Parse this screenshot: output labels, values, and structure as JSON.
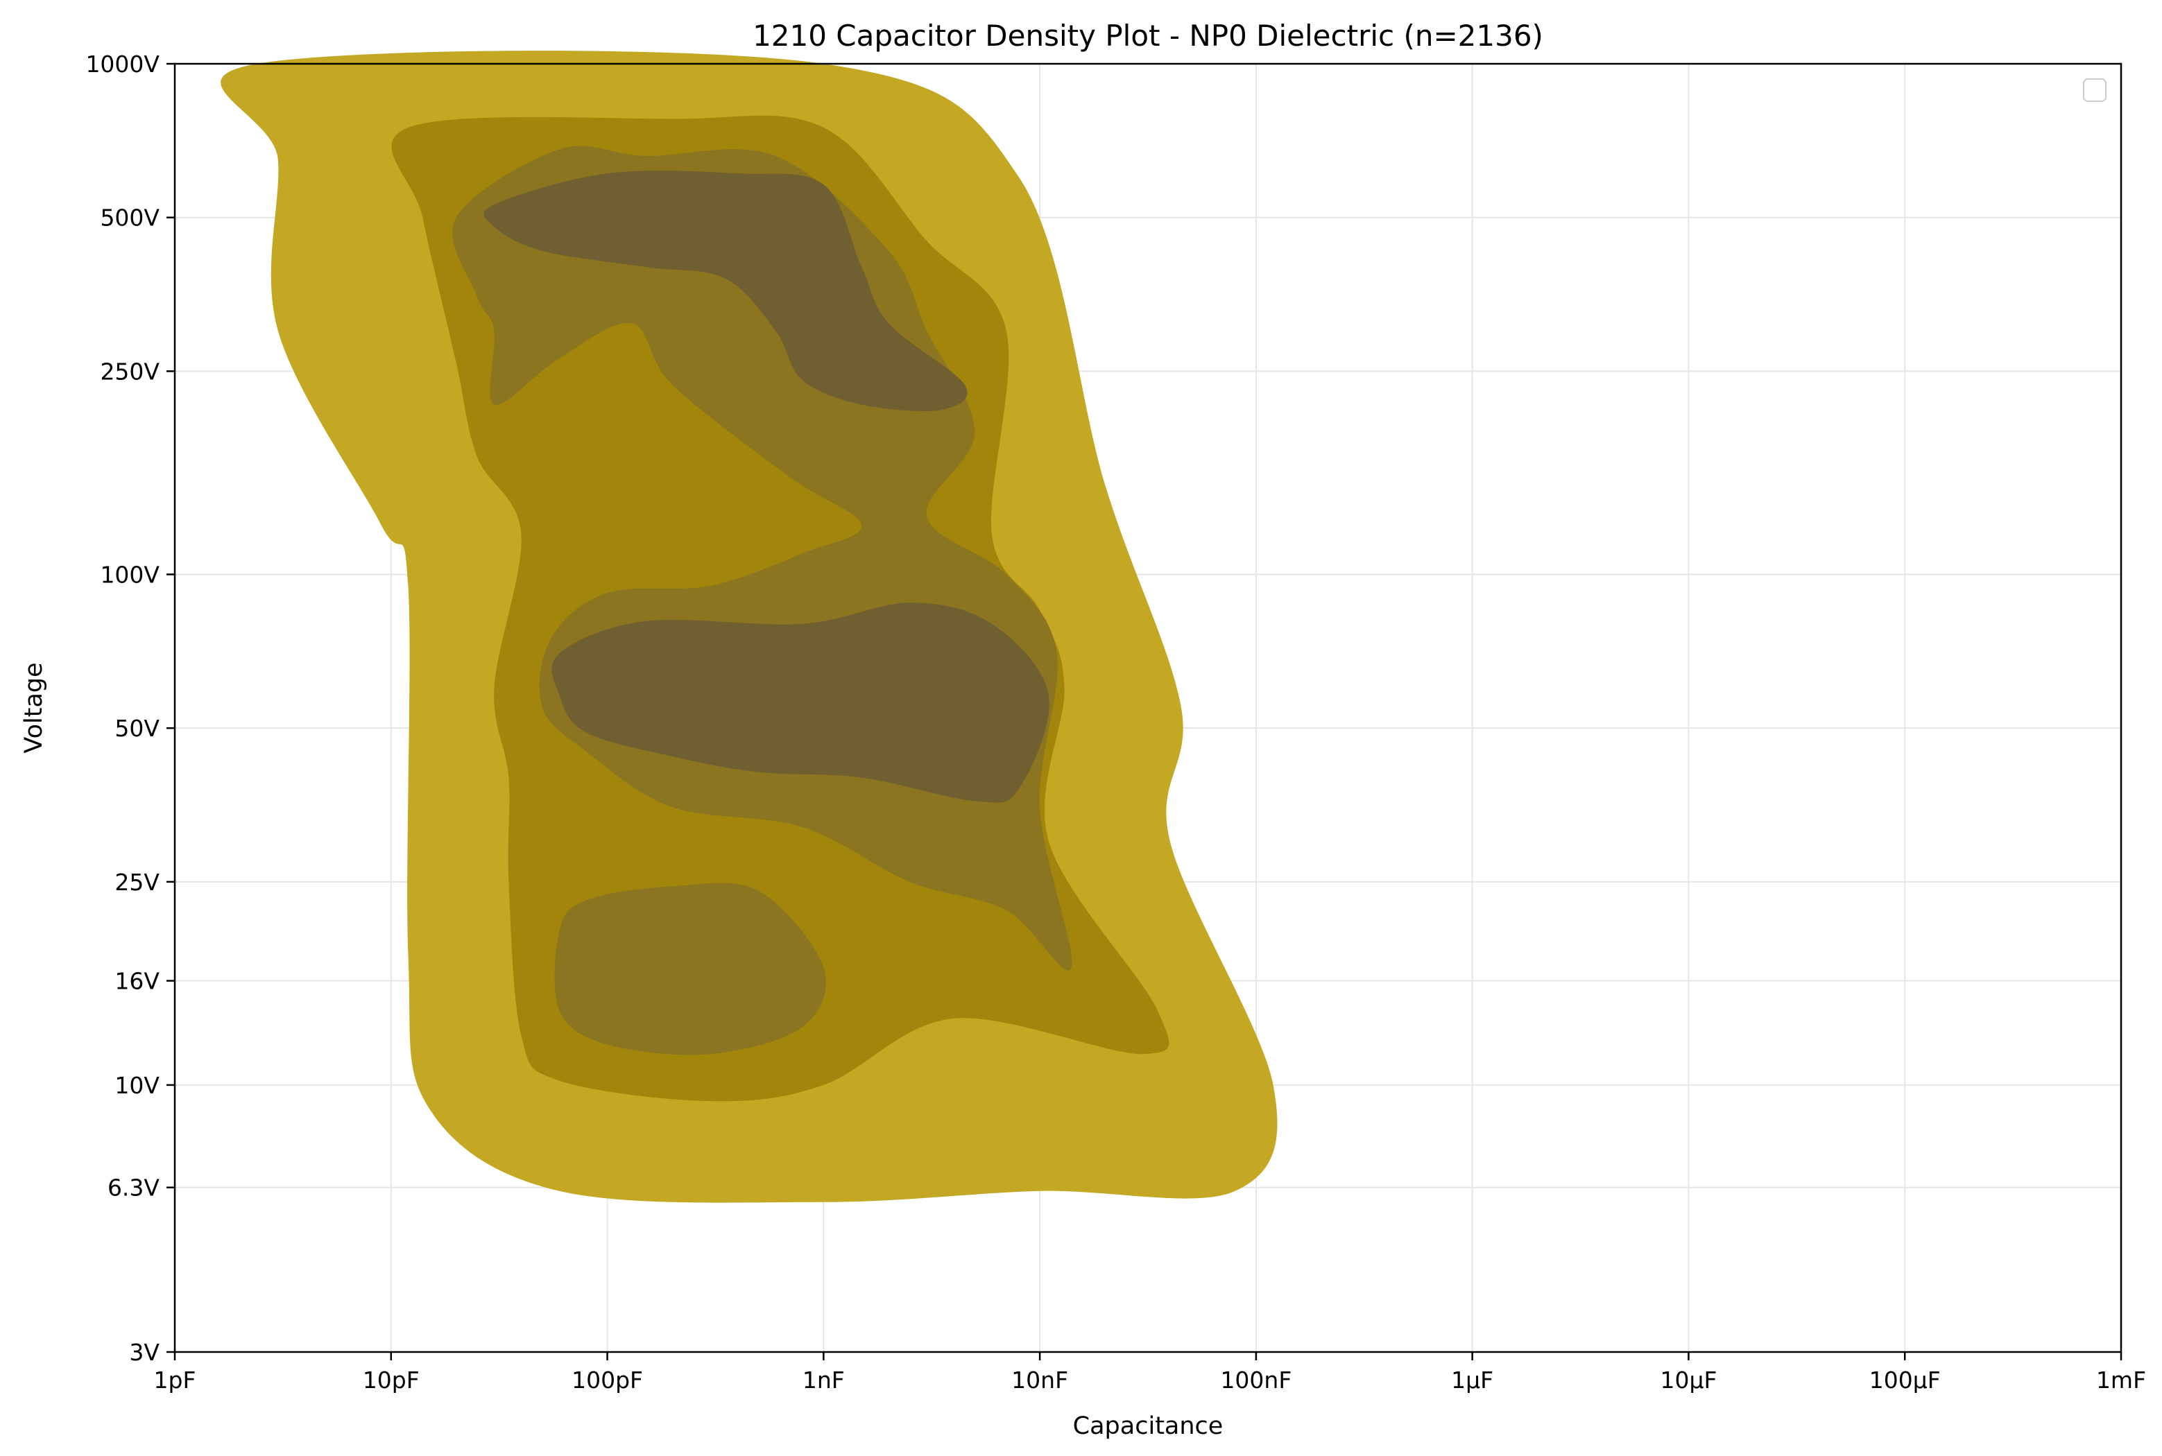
{
  "chart_data": {
    "type": "density_contour",
    "title": "1210 Capacitor Density Plot - NP0 Dielectric (n=2136)",
    "xlabel": "Capacitance",
    "ylabel": "Voltage",
    "x_scale": "log",
    "y_scale": "log",
    "xlim": [
      1e-12,
      0.001
    ],
    "ylim": [
      3,
      1000
    ],
    "grid": true,
    "legend": {
      "placement": "top-right",
      "entries": []
    },
    "x_ticks": [
      {
        "value": 1e-12,
        "label": "1pF"
      },
      {
        "value": 1e-11,
        "label": "10pF"
      },
      {
        "value": 1e-10,
        "label": "100pF"
      },
      {
        "value": 1e-09,
        "label": "1nF"
      },
      {
        "value": 1e-08,
        "label": "10nF"
      },
      {
        "value": 1e-07,
        "label": "100nF"
      },
      {
        "value": 1e-06,
        "label": "1µF"
      },
      {
        "value": 1e-05,
        "label": "10µF"
      },
      {
        "value": 0.0001,
        "label": "100µF"
      },
      {
        "value": 0.001,
        "label": "1mF"
      }
    ],
    "y_ticks": [
      {
        "value": 3,
        "label": "3V"
      },
      {
        "value": 6.3,
        "label": "6.3V"
      },
      {
        "value": 10,
        "label": "10V"
      },
      {
        "value": 16,
        "label": "16V"
      },
      {
        "value": 25,
        "label": "25V"
      },
      {
        "value": 50,
        "label": "50V"
      },
      {
        "value": 100,
        "label": "100V"
      },
      {
        "value": 250,
        "label": "250V"
      },
      {
        "value": 500,
        "label": "500V"
      },
      {
        "value": 1000,
        "label": "1000V"
      }
    ],
    "colors": {
      "level_1": "#c4a723",
      "level_2": "#a1860b",
      "level_3": "#8c7520",
      "level_4": "#6f5f31"
    },
    "density_levels": [
      {
        "level": 1,
        "color": "#c4a723",
        "regions": [
          [
            [
              2.4e-12,
              1000
            ],
            [
              1e-09,
              1000
            ],
            [
              8e-09,
              600
            ],
            [
              2e-08,
              150
            ],
            [
              4.5e-08,
              55
            ],
            [
              4e-08,
              30
            ],
            [
              1.2e-07,
              10
            ],
            [
              8e-08,
              6.2
            ],
            [
              1e-08,
              6.2
            ],
            [
              1e-09,
              5.9
            ],
            [
              6e-11,
              6.2
            ],
            [
              1.5e-11,
              9
            ],
            [
              1.2e-11,
              18
            ],
            [
              1.2e-11,
              95
            ],
            [
              9e-12,
              125
            ],
            [
              3e-12,
              300
            ],
            [
              3e-12,
              650
            ]
          ]
        ]
      },
      {
        "level": 2,
        "color": "#a1860b",
        "regions": [
          [
            [
              1.2e-11,
              750
            ],
            [
              2e-10,
              780
            ],
            [
              1e-09,
              750
            ],
            [
              3e-09,
              450
            ],
            [
              7e-09,
              300
            ],
            [
              6e-09,
              120
            ],
            [
              1e-08,
              85
            ],
            [
              1.3e-08,
              60
            ],
            [
              1.1e-08,
              30
            ],
            [
              3.5e-08,
              14
            ],
            [
              3e-08,
              11.5
            ],
            [
              4e-09,
              13.5
            ],
            [
              1e-09,
              10
            ],
            [
              3e-10,
              9.3
            ],
            [
              6e-11,
              10.2
            ],
            [
              4e-11,
              12.5
            ],
            [
              3.5e-11,
              25
            ],
            [
              3.5e-11,
              40
            ],
            [
              3e-11,
              60
            ],
            [
              4e-11,
              120
            ],
            [
              2.5e-11,
              170
            ],
            [
              2e-11,
              260
            ],
            [
              1.4e-11,
              500
            ]
          ]
        ]
      },
      {
        "level": 3,
        "color": "#8c7520",
        "regions": [
          [
            [
              2e-11,
              500
            ],
            [
              6e-11,
              680
            ],
            [
              1.5e-10,
              660
            ],
            [
              6e-10,
              660
            ],
            [
              2e-09,
              430
            ],
            [
              3e-09,
              300
            ],
            [
              5e-09,
              190
            ],
            [
              3e-09,
              130
            ],
            [
              7e-09,
              100
            ],
            [
              1.2e-08,
              70
            ],
            [
              1e-08,
              35
            ],
            [
              1.4e-08,
              17
            ],
            [
              7e-09,
              22
            ],
            [
              2.5e-09,
              25
            ],
            [
              8e-10,
              32
            ],
            [
              2e-10,
              35
            ],
            [
              8e-11,
              45
            ],
            [
              5e-11,
              55
            ],
            [
              5.5e-11,
              75
            ],
            [
              1e-10,
              92
            ],
            [
              3e-10,
              95
            ],
            [
              8e-10,
              110
            ],
            [
              1.5e-09,
              125
            ],
            [
              7e-10,
              155
            ],
            [
              2e-10,
              235
            ],
            [
              1.3e-10,
              310
            ],
            [
              6e-11,
              265
            ],
            [
              3e-11,
              215
            ],
            [
              3e-11,
              300
            ],
            [
              2.5e-11,
              350
            ]
          ],
          [
            [
              8e-11,
              23
            ],
            [
              2e-10,
              24.5
            ],
            [
              5e-10,
              24
            ],
            [
              1e-09,
              17
            ],
            [
              8e-10,
              13
            ],
            [
              3e-10,
              11.5
            ],
            [
              1e-10,
              12
            ],
            [
              6e-11,
              14
            ],
            [
              6e-11,
              20
            ]
          ]
        ]
      },
      {
        "level": 4,
        "color": "#6f5f31",
        "regions": [
          [
            [
              3e-11,
              530
            ],
            [
              1e-10,
              610
            ],
            [
              4e-10,
              610
            ],
            [
              1e-09,
              580
            ],
            [
              1.5e-09,
              400
            ],
            [
              2e-09,
              310
            ],
            [
              4.5e-09,
              235
            ],
            [
              3.5e-09,
              210
            ],
            [
              1.5e-09,
              215
            ],
            [
              8e-10,
              240
            ],
            [
              6e-10,
              300
            ],
            [
              3.5e-10,
              380
            ],
            [
              1.5e-10,
              400
            ],
            [
              5e-11,
              430
            ],
            [
              3e-11,
              480
            ]
          ],
          [
            [
              6e-11,
              70
            ],
            [
              1.5e-10,
              81
            ],
            [
              8e-10,
              80
            ],
            [
              2.5e-09,
              88
            ],
            [
              6e-09,
              80
            ],
            [
              1.1e-08,
              58
            ],
            [
              8e-09,
              38
            ],
            [
              5e-09,
              36
            ],
            [
              1.5e-09,
              40
            ],
            [
              5e-10,
              41
            ],
            [
              2e-10,
              44
            ],
            [
              8e-11,
              49
            ],
            [
              6e-11,
              58
            ]
          ]
        ]
      }
    ]
  }
}
